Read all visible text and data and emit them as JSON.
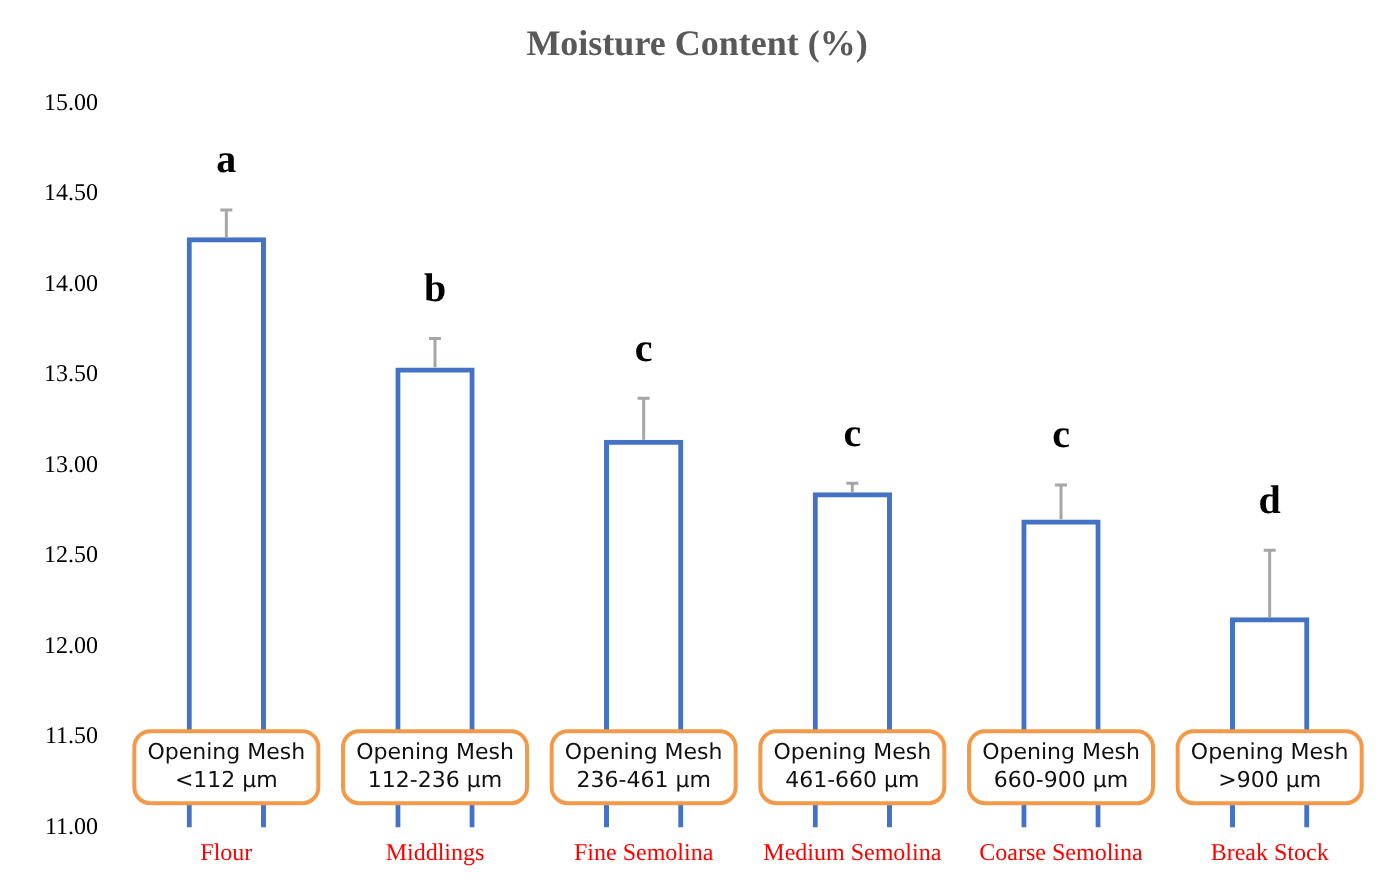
{
  "chart_data": {
    "type": "bar",
    "title": "Moisture Content (%)",
    "categories": [
      "Flour",
      "Middlings",
      "Fine Semolina",
      "Medium Semolina",
      "Coarse Semolina",
      "Break Stock"
    ],
    "values": [
      14.26,
      13.54,
      13.14,
      12.85,
      12.7,
      12.16
    ],
    "errors": [
      [
        14.26,
        14.41
      ],
      [
        13.54,
        13.7
      ],
      [
        13.14,
        13.37
      ],
      [
        12.85,
        12.9
      ],
      [
        12.7,
        12.89
      ],
      [
        12.16,
        12.53
      ]
    ],
    "color": "#4472c4",
    "ylim": [
      11,
      15
    ],
    "yticks": [
      {
        "value": 11,
        "label": "11.00"
      },
      {
        "value": 11.5,
        "label": "11.50"
      },
      {
        "value": 12,
        "label": "12.00"
      },
      {
        "value": 12.5,
        "label": "12.50"
      },
      {
        "value": 13,
        "label": "13.00"
      },
      {
        "value": 13.5,
        "label": "13.50"
      },
      {
        "value": 14,
        "label": "14.00"
      },
      {
        "value": 14.5,
        "label": "14.50"
      },
      {
        "value": 15,
        "label": "15.00"
      }
    ],
    "grid": false,
    "legend": false,
    "annotations": [
      "a",
      "b",
      "c",
      "c",
      "c",
      "d",
      "Opening Mesh\n<112 µm",
      "Opening Mesh\n112-236 µm",
      "Opening Mesh\n236-461 µm",
      "Opening Mesh\n461-660 µm",
      "Opening Mesh\n660-900 µm",
      "Opening Mesh\n>900 µm"
    ]
  }
}
